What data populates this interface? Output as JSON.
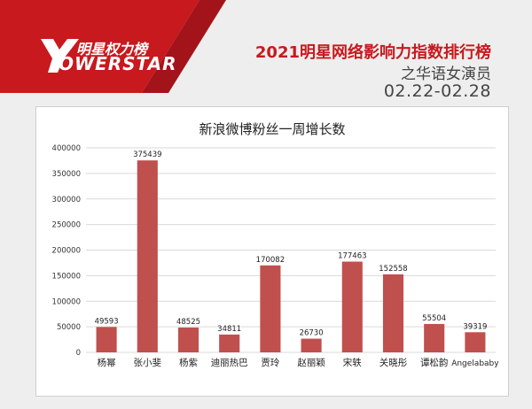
{
  "header": {
    "brand_zh": "明星权力榜",
    "brand_en": "OWERSTAR",
    "headline": "2021明星网络影响力指数排行榜",
    "subtitle": "之华语女演员",
    "period": "02.22-02.28"
  },
  "colors": {
    "brand_red": "#c8191e",
    "bar": "#c0504d"
  },
  "chart_data": {
    "type": "bar",
    "title": "新浪微博粉丝一周增长数",
    "categories": [
      "杨幂",
      "张小斐",
      "杨紫",
      "迪丽热巴",
      "贾玲",
      "赵丽颖",
      "宋轶",
      "关晓彤",
      "谭松韵",
      "Angelababy"
    ],
    "values": [
      49593,
      375439,
      48525,
      34811,
      170082,
      26730,
      177463,
      152558,
      55504,
      39319
    ],
    "data_labels": [
      "49593",
      "375439",
      "48525",
      "34811",
      "170082",
      "26730",
      "177463",
      "152558",
      "55504",
      "39319"
    ],
    "yticks": [
      "0",
      "50000",
      "100000",
      "150000",
      "200000",
      "250000",
      "300000",
      "350000",
      "400000"
    ],
    "ylim": [
      0,
      400000
    ],
    "grid": true,
    "legend": "none"
  }
}
